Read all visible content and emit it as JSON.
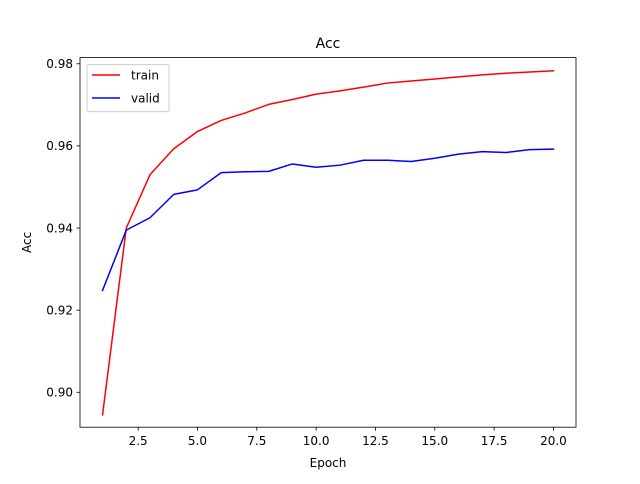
{
  "chart_data": {
    "type": "line",
    "title": "Acc",
    "xlabel": "Epoch",
    "ylabel": "Acc",
    "xlim": [
      0.05,
      20.95
    ],
    "ylim": [
      0.8915,
      0.9815
    ],
    "xticks": [
      2.5,
      5.0,
      7.5,
      10.0,
      12.5,
      15.0,
      17.5,
      20.0
    ],
    "xtick_labels": [
      "2.5",
      "5.0",
      "7.5",
      "10.0",
      "12.5",
      "15.0",
      "17.5",
      "20.0"
    ],
    "yticks": [
      0.9,
      0.92,
      0.94,
      0.96,
      0.98
    ],
    "ytick_labels": [
      "0.90",
      "0.92",
      "0.94",
      "0.96",
      "0.98"
    ],
    "grid": false,
    "legend_position": "upper-left",
    "x": [
      1,
      2,
      3,
      4,
      5,
      6,
      7,
      8,
      9,
      10,
      11,
      12,
      13,
      14,
      15,
      16,
      17,
      18,
      19,
      20
    ],
    "series": [
      {
        "name": "train",
        "color": "#ff0000",
        "values": [
          0.8945,
          0.94,
          0.953,
          0.9593,
          0.9635,
          0.9662,
          0.968,
          0.9701,
          0.9713,
          0.9726,
          0.9734,
          0.9743,
          0.9753,
          0.9758,
          0.9763,
          0.9768,
          0.9773,
          0.9777,
          0.978,
          0.9783
        ]
      },
      {
        "name": "valid",
        "color": "#0000ff",
        "values": [
          0.9248,
          0.9395,
          0.9425,
          0.9482,
          0.9493,
          0.9535,
          0.9537,
          0.9538,
          0.9556,
          0.9548,
          0.9553,
          0.9565,
          0.9565,
          0.9562,
          0.957,
          0.958,
          0.9586,
          0.9584,
          0.9591,
          0.9592
        ]
      }
    ]
  }
}
